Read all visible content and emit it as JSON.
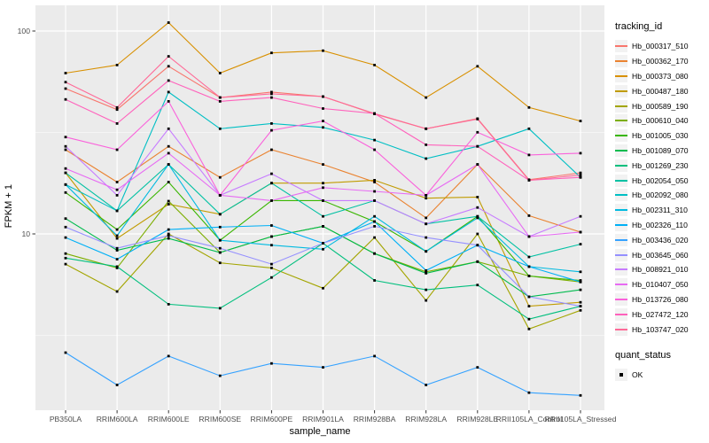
{
  "chart_data": {
    "type": "line",
    "title": "",
    "xlabel": "sample_name",
    "ylabel": "FPKM + 1",
    "y_scale": "log10",
    "y_ticks": [
      10,
      100
    ],
    "y_minor_gridlines": [
      3.1623,
      31.623
    ],
    "y_domain": [
      1.35,
      134
    ],
    "grid": true,
    "legend_position": "right",
    "panel_bg": "#EBEBEB",
    "grid_color": "#FFFFFF",
    "axis_text_color": "#4D4D4D",
    "tick_mark_color": "#333333",
    "point_color": "#000000",
    "point_marker": "square",
    "categories": [
      "PB350LA",
      "RRIM600LA",
      "RRIM600LE",
      "RRIM600SE",
      "RRIM600PE",
      "RRIM901LA",
      "RRIM928BA",
      "RRIM928LA",
      "RRIM928LE",
      "RRII105LA_Control",
      "RRII105LA_Stressed"
    ],
    "series": [
      {
        "name": "Hb_000317_510",
        "color": "#F8766D",
        "values": [
          52,
          41,
          67,
          47,
          50,
          47.5,
          39,
          33,
          37,
          18.5,
          20
        ]
      },
      {
        "name": "Hb_000362_170",
        "color": "#EA8331",
        "values": [
          26,
          18,
          27,
          19,
          26,
          22,
          18,
          12,
          22,
          12.3,
          10.2
        ]
      },
      {
        "name": "Hb_000373_080",
        "color": "#D89000",
        "values": [
          62,
          68,
          110,
          62,
          78,
          80,
          68,
          47,
          67,
          42,
          36
        ]
      },
      {
        "name": "Hb_000487_180",
        "color": "#C09B00",
        "values": [
          20,
          9.5,
          14,
          12.5,
          17.8,
          17.8,
          18.4,
          15,
          15.2,
          4.4,
          4.6
        ]
      },
      {
        "name": "Hb_000589_190",
        "color": "#A3A500",
        "values": [
          7.1,
          5.2,
          10,
          7.2,
          6.8,
          5.4,
          9.6,
          4.7,
          10,
          3.4,
          4.2
        ]
      },
      {
        "name": "Hb_000610_040",
        "color": "#7CAE00",
        "values": [
          8,
          6.8,
          14.5,
          8.1,
          9.7,
          10.9,
          8,
          6.5,
          7.3,
          6.2,
          5.8
        ]
      },
      {
        "name": "Hb_001005_030",
        "color": "#39B600",
        "values": [
          16,
          10.5,
          18,
          9.3,
          14.6,
          14.6,
          11.5,
          8.2,
          12.2,
          6.2,
          5.9
        ]
      },
      {
        "name": "Hb_001089_070",
        "color": "#00BB4E",
        "values": [
          11.9,
          8.3,
          9.5,
          8.1,
          9.7,
          10.9,
          8,
          6.4,
          7.3,
          4.9,
          5.3
        ]
      },
      {
        "name": "Hb_001269_230",
        "color": "#00BF7D",
        "values": [
          7.6,
          6.9,
          4.5,
          4.3,
          6.1,
          9,
          5.9,
          5.3,
          5.6,
          3.8,
          4.4
        ]
      },
      {
        "name": "Hb_002054_050",
        "color": "#00C1A3",
        "values": [
          20,
          13,
          22,
          12.5,
          17.8,
          12.2,
          14.6,
          11.2,
          12.2,
          7.7,
          8.9
        ]
      },
      {
        "name": "Hb_002092_080",
        "color": "#00BFC4",
        "values": [
          17.5,
          13,
          50,
          33,
          35,
          33.5,
          29,
          23.5,
          27,
          33,
          19
        ]
      },
      {
        "name": "Hb_002311_310",
        "color": "#00BAE0",
        "values": [
          17.5,
          9.8,
          22,
          9.3,
          8.8,
          8.4,
          12.2,
          8.2,
          12,
          6.9,
          6.5
        ]
      },
      {
        "name": "Hb_002326_110",
        "color": "#00B0F6",
        "values": [
          9.6,
          7.5,
          10.5,
          10.8,
          11,
          9,
          11.5,
          6.6,
          8.8,
          6.9,
          5.8
        ]
      },
      {
        "name": "Hb_003436_020",
        "color": "#35A2FF",
        "values": [
          2.6,
          1.8,
          2.5,
          2,
          2.3,
          2.2,
          2.5,
          1.8,
          2.2,
          1.65,
          1.6
        ]
      },
      {
        "name": "Hb_003645_060",
        "color": "#9590FF",
        "values": [
          10.8,
          8.5,
          9.8,
          8.5,
          7.1,
          9,
          10.9,
          9.6,
          8.8,
          4.9,
          4.4
        ]
      },
      {
        "name": "Hb_008921_010",
        "color": "#C77CFF",
        "values": [
          27,
          15.5,
          33,
          15.5,
          19.8,
          14.6,
          14.6,
          11.2,
          13.5,
          9.7,
          12.2
        ]
      },
      {
        "name": "Hb_010407_050",
        "color": "#E76BF3",
        "values": [
          21,
          16.5,
          25,
          15.5,
          14.6,
          16.9,
          16.2,
          15.5,
          22,
          9.7,
          10.2
        ]
      },
      {
        "name": "Hb_013726_080",
        "color": "#FA62DB",
        "values": [
          30,
          26,
          45,
          15.5,
          32.4,
          36,
          26,
          15.5,
          31.7,
          24.5,
          25
        ]
      },
      {
        "name": "Hb_027472_120",
        "color": "#FF62BC",
        "values": [
          46,
          35,
          57,
          45,
          47,
          41.5,
          39.2,
          27.5,
          27,
          18.4,
          19
        ]
      },
      {
        "name": "Hb_103747_020",
        "color": "#FF6A98",
        "values": [
          56,
          42,
          75,
          47,
          49,
          47.5,
          39.2,
          33,
          36.8,
          18.4,
          19.5
        ]
      }
    ],
    "legend": {
      "color_title": "tracking_id",
      "shape_title": "quant_status",
      "shape_entries": [
        {
          "label": "OK",
          "marker": "square",
          "color": "#000000"
        }
      ]
    }
  }
}
